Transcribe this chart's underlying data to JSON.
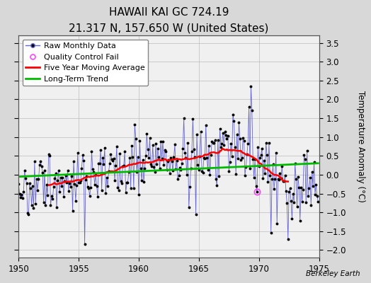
{
  "title": "HAWAII KAI GC 724.19",
  "subtitle": "21.317 N, 157.650 W (United States)",
  "ylabel_right": "Temperature Anomaly (°C)",
  "watermark": "Berkeley Earth",
  "year_start": 1950,
  "year_end": 1975,
  "ylim": [
    -2.2,
    3.7
  ],
  "yticks": [
    -2,
    -1.5,
    -1,
    -0.5,
    0,
    0.5,
    1,
    1.5,
    2,
    2.5,
    3,
    3.5
  ],
  "xticks": [
    1950,
    1955,
    1960,
    1965,
    1970,
    1975
  ],
  "raw_line_color": "#6666cc",
  "raw_marker_color": "#000000",
  "ma_color": "#ff0000",
  "trend_color": "#00bb00",
  "qc_color": "#ff44ff",
  "bg_color": "#d8d8d8",
  "plot_bg": "#f0f0f0",
  "grid_color": "#bbbbbb",
  "title_fontsize": 11,
  "subtitle_fontsize": 9,
  "legend_fontsize": 8,
  "axis_fontsize": 8.5
}
